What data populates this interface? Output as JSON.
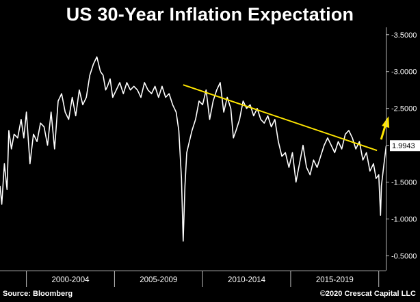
{
  "chart_data": {
    "type": "line",
    "title": "US 30-Year Inflation Expectation",
    "xlabel": "",
    "ylabel": "",
    "x_range": [
      1998.5,
      2020.4
    ],
    "ylim": [
      0.3,
      3.6
    ],
    "y_axis_side": "right",
    "grid": false,
    "legend": "none",
    "x_tick_labels": [
      {
        "label": "2000-2004",
        "x": 2002.5
      },
      {
        "label": "2005-2009",
        "x": 2007.5
      },
      {
        "label": "2010-2014",
        "x": 2012.5
      },
      {
        "label": "2015-2019",
        "x": 2017.5
      }
    ],
    "x_separators": [
      2000.0,
      2005.0,
      2010.0,
      2015.0,
      2020.0
    ],
    "y_ticks": [
      {
        "value": 3.5,
        "label": "3.5000"
      },
      {
        "value": 3.0,
        "label": "3.0000"
      },
      {
        "value": 2.5,
        "label": "2.5000"
      },
      {
        "value": 2.0,
        "label": "2.0000"
      },
      {
        "value": 1.5,
        "label": "1.5000"
      },
      {
        "value": 1.0,
        "label": "1.0000"
      },
      {
        "value": 0.5,
        "label": "0.5000"
      }
    ],
    "last_value": {
      "value": 1.9943,
      "label": "1.9943"
    },
    "series": [
      {
        "color": "#ffffff",
        "x": [
          1998.5,
          1998.6,
          1998.75,
          1998.9,
          1999.0,
          1999.15,
          1999.3,
          1999.5,
          1999.7,
          1999.85,
          2000.0,
          2000.2,
          2000.4,
          2000.6,
          2000.8,
          2001.0,
          2001.2,
          2001.4,
          2001.6,
          2001.8,
          2002.0,
          2002.2,
          2002.4,
          2002.6,
          2002.8,
          2003.0,
          2003.2,
          2003.4,
          2003.6,
          2003.8,
          2004.0,
          2004.2,
          2004.35,
          2004.5,
          2004.6,
          2004.75,
          2004.9,
          2005.1,
          2005.3,
          2005.5,
          2005.7,
          2005.9,
          2006.1,
          2006.3,
          2006.5,
          2006.7,
          2006.9,
          2007.1,
          2007.3,
          2007.5,
          2007.7,
          2007.9,
          2008.1,
          2008.3,
          2008.5,
          2008.65,
          2008.8,
          2008.9,
          2009.0,
          2009.1,
          2009.25,
          2009.4,
          2009.6,
          2009.8,
          2010.0,
          2010.2,
          2010.4,
          2010.6,
          2010.8,
          2011.0,
          2011.2,
          2011.4,
          2011.6,
          2011.75,
          2011.9,
          2012.1,
          2012.3,
          2012.5,
          2012.7,
          2012.9,
          2013.1,
          2013.3,
          2013.5,
          2013.7,
          2013.9,
          2014.1,
          2014.3,
          2014.5,
          2014.7,
          2014.9,
          2015.1,
          2015.3,
          2015.5,
          2015.7,
          2015.9,
          2016.1,
          2016.3,
          2016.5,
          2016.7,
          2016.9,
          2017.1,
          2017.3,
          2017.5,
          2017.7,
          2017.9,
          2018.1,
          2018.3,
          2018.5,
          2018.7,
          2018.9,
          2019.1,
          2019.3,
          2019.5,
          2019.7,
          2019.85,
          2020.0,
          2020.1,
          2020.15,
          2020.25,
          2020.35,
          2020.42
        ],
        "values": [
          1.45,
          1.2,
          1.75,
          1.4,
          2.2,
          1.95,
          2.15,
          2.1,
          2.35,
          2.1,
          2.45,
          1.75,
          2.15,
          2.05,
          2.3,
          2.25,
          2.0,
          2.45,
          1.95,
          2.6,
          2.7,
          2.45,
          2.35,
          2.65,
          2.4,
          2.75,
          2.55,
          2.65,
          2.95,
          3.1,
          3.2,
          3.0,
          2.95,
          2.75,
          2.8,
          2.9,
          2.65,
          2.75,
          2.85,
          2.7,
          2.85,
          2.75,
          2.8,
          2.75,
          2.65,
          2.85,
          2.75,
          2.7,
          2.8,
          2.65,
          2.8,
          2.65,
          2.7,
          2.55,
          2.45,
          2.2,
          1.55,
          0.7,
          1.45,
          1.9,
          2.05,
          2.2,
          2.35,
          2.6,
          2.55,
          2.75,
          2.35,
          2.6,
          2.75,
          2.85,
          2.45,
          2.65,
          2.5,
          2.1,
          2.2,
          2.35,
          2.6,
          2.5,
          2.55,
          2.4,
          2.5,
          2.35,
          2.3,
          2.4,
          2.25,
          2.35,
          2.05,
          1.85,
          1.9,
          1.7,
          1.9,
          1.5,
          1.75,
          2.0,
          1.7,
          1.6,
          1.8,
          1.7,
          1.85,
          2.0,
          2.1,
          2.0,
          1.9,
          2.05,
          1.95,
          2.15,
          2.2,
          2.1,
          1.95,
          2.05,
          1.8,
          1.9,
          1.65,
          1.75,
          1.55,
          1.6,
          1.05,
          1.45,
          1.65,
          1.85,
          1.99
        ]
      }
    ],
    "trendline": {
      "color": "#ffe600",
      "x": [
        2008.9,
        2019.9
      ],
      "values": [
        2.82,
        1.93
      ]
    },
    "arrow": {
      "color": "#ffe600",
      "direction": "up-right"
    },
    "axis_color": "#bfbfbf",
    "background": "#000000"
  },
  "footer": {
    "source": "Source: Bloomberg",
    "copyright": "©2020 Crescat Capital LLC"
  }
}
